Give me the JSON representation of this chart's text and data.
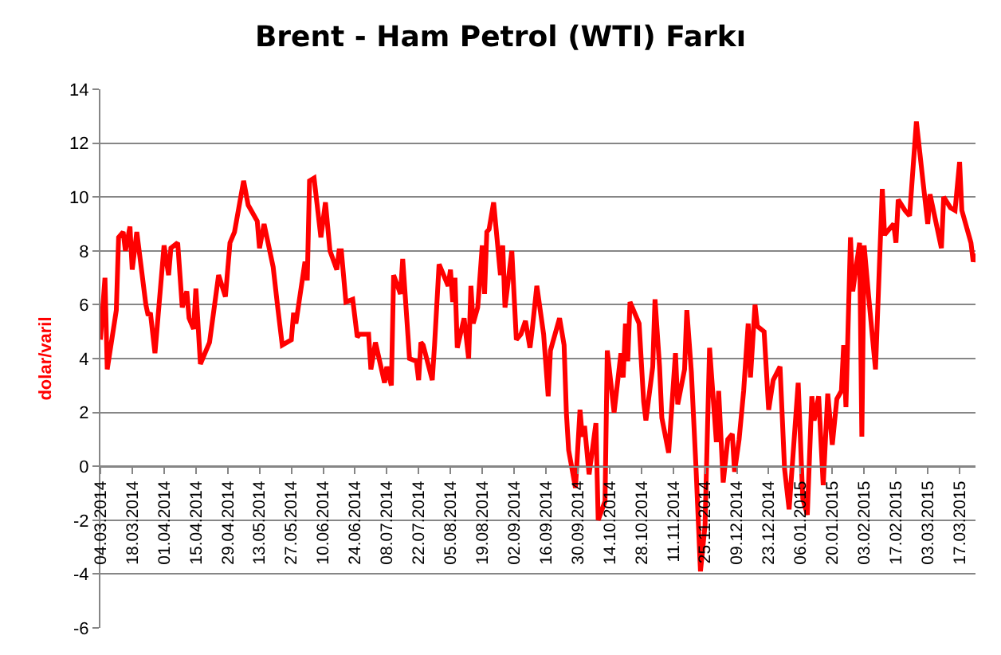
{
  "chart_data": {
    "type": "line",
    "title": "Brent - Ham Petrol (WTI) Farkı",
    "ylabel": "dolar/varil",
    "grid": "y",
    "marker": "none",
    "line_style": "solid",
    "xlim": [
      "2014-03-04",
      "2015-03-24"
    ],
    "xticks": [
      {
        "value": "2014-03-04",
        "label": "04.03.2014"
      },
      {
        "value": "2014-03-18",
        "label": "18.03.2014"
      },
      {
        "value": "2014-04-01",
        "label": "01.04.2014"
      },
      {
        "value": "2014-04-15",
        "label": "15.04.2014"
      },
      {
        "value": "2014-04-29",
        "label": "29.04.2014"
      },
      {
        "value": "2014-05-13",
        "label": "13.05.2014"
      },
      {
        "value": "2014-05-27",
        "label": "27.05.2014"
      },
      {
        "value": "2014-06-10",
        "label": "10.06.2014"
      },
      {
        "value": "2014-06-24",
        "label": "24.06.2014"
      },
      {
        "value": "2014-07-08",
        "label": "08.07.2014"
      },
      {
        "value": "2014-07-22",
        "label": "22.07.2014"
      },
      {
        "value": "2014-08-05",
        "label": "05.08.2014"
      },
      {
        "value": "2014-08-19",
        "label": "19.08.2014"
      },
      {
        "value": "2014-09-02",
        "label": "02.09.2014"
      },
      {
        "value": "2014-09-16",
        "label": "16.09.2014"
      },
      {
        "value": "2014-09-30",
        "label": "30.09.2014"
      },
      {
        "value": "2014-10-14",
        "label": "14.10.2014"
      },
      {
        "value": "2014-10-28",
        "label": "28.10.2014"
      },
      {
        "value": "2014-11-11",
        "label": "11.11.2014"
      },
      {
        "value": "2014-11-25",
        "label": "25.11.2014"
      },
      {
        "value": "2014-12-09",
        "label": "09.12.2014"
      },
      {
        "value": "2014-12-23",
        "label": "23.12.2014"
      },
      {
        "value": "2015-01-06",
        "label": "06.01.2015"
      },
      {
        "value": "2015-01-20",
        "label": "20.01.2015"
      },
      {
        "value": "2015-02-03",
        "label": "03.02.2015"
      },
      {
        "value": "2015-02-17",
        "label": "17.02.2015"
      },
      {
        "value": "2015-03-03",
        "label": "03.03.2015"
      },
      {
        "value": "2015-03-17",
        "label": "17.03.2015"
      }
    ],
    "ylim": [
      -6,
      14
    ],
    "yticks": [
      -6,
      -4,
      -2,
      0,
      2,
      4,
      6,
      8,
      10,
      12,
      14
    ],
    "x": [
      "2014-03-04",
      "2014-03-06",
      "2014-03-07",
      "2014-03-11",
      "2014-03-12",
      "2014-03-14",
      "2014-03-15",
      "2014-03-17",
      "2014-03-18",
      "2014-03-20",
      "2014-03-24",
      "2014-03-25",
      "2014-03-26",
      "2014-03-28",
      "2014-04-01",
      "2014-04-03",
      "2014-04-04",
      "2014-04-07",
      "2014-04-09",
      "2014-04-11",
      "2014-04-12",
      "2014-04-14",
      "2014-04-15",
      "2014-04-17",
      "2014-04-21",
      "2014-04-25",
      "2014-04-28",
      "2014-04-30",
      "2014-05-02",
      "2014-05-06",
      "2014-05-08",
      "2014-05-12",
      "2014-05-13",
      "2014-05-15",
      "2014-05-19",
      "2014-05-21",
      "2014-05-23",
      "2014-05-27",
      "2014-05-28",
      "2014-05-29",
      "2014-06-02",
      "2014-06-03",
      "2014-06-04",
      "2014-06-06",
      "2014-06-09",
      "2014-06-11",
      "2014-06-13",
      "2014-06-16",
      "2014-06-17",
      "2014-06-18",
      "2014-06-20",
      "2014-06-23",
      "2014-06-25",
      "2014-06-26",
      "2014-06-30",
      "2014-07-01",
      "2014-07-03",
      "2014-07-07",
      "2014-07-08",
      "2014-07-10",
      "2014-07-11",
      "2014-07-14",
      "2014-07-15",
      "2014-07-18",
      "2014-07-21",
      "2014-07-22",
      "2014-07-23",
      "2014-07-24",
      "2014-07-28",
      "2014-07-29",
      "2014-07-31",
      "2014-08-04",
      "2014-08-05",
      "2014-08-06",
      "2014-08-07",
      "2014-08-08",
      "2014-08-11",
      "2014-08-13",
      "2014-08-14",
      "2014-08-15",
      "2014-08-17",
      "2014-08-19",
      "2014-08-20",
      "2014-08-21",
      "2014-08-22",
      "2014-08-24",
      "2014-08-27",
      "2014-08-28",
      "2014-08-29",
      "2014-09-01",
      "2014-09-03",
      "2014-09-05",
      "2014-09-07",
      "2014-09-09",
      "2014-09-10",
      "2014-09-12",
      "2014-09-15",
      "2014-09-17",
      "2014-09-18",
      "2014-09-22",
      "2014-09-24",
      "2014-09-25",
      "2014-09-26",
      "2014-09-29",
      "2014-10-01",
      "2014-10-02",
      "2014-10-03",
      "2014-10-05",
      "2014-10-08",
      "2014-10-09",
      "2014-10-12",
      "2014-10-13",
      "2014-10-16",
      "2014-10-19",
      "2014-10-20",
      "2014-10-21",
      "2014-10-22",
      "2014-10-23",
      "2014-10-27",
      "2014-10-29",
      "2014-10-30",
      "2014-11-02",
      "2014-11-03",
      "2014-11-05",
      "2014-11-06",
      "2014-11-09",
      "2014-11-12",
      "2014-11-13",
      "2014-11-16",
      "2014-11-17",
      "2014-11-19",
      "2014-11-21",
      "2014-11-23",
      "2014-11-25",
      "2014-11-27",
      "2014-11-30",
      "2014-12-01",
      "2014-12-03",
      "2014-12-05",
      "2014-12-07",
      "2014-12-08",
      "2014-12-10",
      "2014-12-12",
      "2014-12-14",
      "2014-12-15",
      "2014-12-17",
      "2014-12-18",
      "2014-12-21",
      "2014-12-23",
      "2014-12-25",
      "2014-12-28",
      "2014-12-30",
      "2015-01-01",
      "2015-01-05",
      "2015-01-07",
      "2015-01-09",
      "2015-01-11",
      "2015-01-12",
      "2015-01-14",
      "2015-01-16",
      "2015-01-18",
      "2015-01-20",
      "2015-01-22",
      "2015-01-24",
      "2015-01-25",
      "2015-01-26",
      "2015-01-28",
      "2015-01-29",
      "2015-02-01",
      "2015-02-02",
      "2015-02-03",
      "2015-02-05",
      "2015-02-08",
      "2015-02-11",
      "2015-02-12",
      "2015-02-16",
      "2015-02-17",
      "2015-02-18",
      "2015-02-21",
      "2015-02-23",
      "2015-02-26",
      "2015-03-01",
      "2015-03-03",
      "2015-03-04",
      "2015-03-09",
      "2015-03-10",
      "2015-03-13",
      "2015-03-15",
      "2015-03-17",
      "2015-03-18",
      "2015-03-22",
      "2015-03-23",
      "2015-03-24"
    ],
    "series": [
      {
        "color": "#ff0000",
        "values": [
          4.7,
          7.0,
          3.6,
          5.8,
          8.5,
          8.7,
          8.0,
          8.9,
          7.3,
          8.7,
          6.0,
          5.6,
          5.7,
          4.2,
          8.2,
          7.1,
          8.1,
          8.3,
          5.9,
          6.5,
          5.5,
          5.1,
          6.6,
          3.8,
          4.6,
          7.1,
          6.3,
          8.3,
          8.7,
          10.6,
          9.7,
          9.1,
          8.1,
          9.0,
          7.4,
          5.9,
          4.5,
          4.7,
          5.7,
          5.3,
          7.6,
          6.9,
          10.6,
          10.7,
          8.5,
          9.8,
          8.0,
          7.3,
          8.0,
          8.0,
          6.1,
          6.2,
          4.8,
          4.9,
          4.9,
          3.6,
          4.6,
          3.1,
          3.7,
          3.0,
          7.1,
          6.4,
          7.7,
          4.0,
          3.9,
          3.2,
          4.6,
          4.5,
          3.2,
          4.5,
          7.5,
          6.7,
          7.3,
          6.1,
          7.0,
          4.4,
          5.5,
          4.0,
          6.7,
          5.3,
          5.9,
          8.2,
          6.4,
          8.7,
          8.8,
          9.8,
          7.1,
          8.2,
          5.9,
          8.0,
          4.7,
          4.9,
          5.4,
          4.4,
          5.1,
          6.7,
          4.9,
          2.6,
          4.3,
          5.5,
          4.5,
          2.0,
          0.6,
          -0.8,
          2.1,
          1.1,
          1.5,
          -0.3,
          1.6,
          -2.0,
          -1.3,
          4.3,
          2.0,
          4.2,
          3.3,
          5.3,
          3.9,
          6.1,
          5.3,
          2.4,
          1.7,
          3.7,
          6.2,
          3.7,
          1.8,
          0.5,
          4.2,
          2.3,
          3.6,
          5.8,
          3.5,
          0.0,
          -3.9,
          -2.2,
          4.4,
          0.9,
          2.8,
          -0.6,
          1.0,
          1.2,
          -0.2,
          1.0,
          2.8,
          5.3,
          3.3,
          6.0,
          5.2,
          5.0,
          2.1,
          3.2,
          3.7,
          -0.1,
          -1.6,
          3.1,
          -1.2,
          -1.8,
          2.6,
          1.7,
          2.6,
          -0.7,
          2.7,
          0.8,
          2.5,
          2.8,
          4.5,
          2.2,
          8.5,
          6.5,
          8.3,
          1.1,
          8.2,
          6.3,
          3.6,
          10.3,
          8.6,
          9.0,
          8.3,
          9.9,
          9.5,
          9.3,
          12.8,
          10.5,
          9.0,
          10.1,
          8.1,
          10.0,
          9.6,
          9.5,
          11.3,
          9.5,
          8.3,
          7.6,
          7.9
        ]
      }
    ]
  }
}
